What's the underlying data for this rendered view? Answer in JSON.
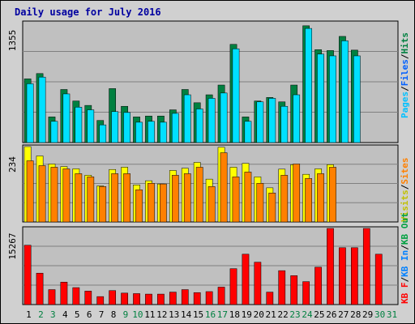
{
  "chart_data": {
    "type": "bar",
    "title": "Daily usage for July 2016",
    "categories": [
      "1",
      "2",
      "3",
      "4",
      "5",
      "6",
      "7",
      "8",
      "9",
      "10",
      "11",
      "12",
      "13",
      "14",
      "15",
      "16",
      "17",
      "18",
      "19",
      "20",
      "21",
      "22",
      "23",
      "24",
      "25",
      "26",
      "27",
      "28",
      "29",
      "30",
      "31"
    ],
    "weekend_days": [
      "2",
      "3",
      "9",
      "10",
      "16",
      "17",
      "23",
      "24",
      "30",
      "31"
    ],
    "panels": [
      {
        "name": "pages-files-hits",
        "max_label": "1355",
        "ymax": 1355,
        "legend": [
          "Pages",
          "Files",
          "Hits"
        ],
        "series": [
          {
            "name": "Hits",
            "color": "#008040",
            "values": [
              720,
              780,
              290,
              600,
              470,
              420,
              250,
              610,
              410,
              290,
              300,
              300,
              370,
              600,
              450,
              540,
              650,
              1110,
              290,
              470,
              510,
              460,
              650,
              1320,
              1050,
              1040,
              1200,
              1045
            ]
          },
          {
            "name": "Files",
            "color": "#00e0ff",
            "values": [
              665,
              740,
              240,
              550,
              400,
              370,
              200,
              350,
              340,
              230,
              240,
              230,
              330,
              540,
              380,
              500,
              560,
              1060,
              240,
              460,
              500,
              410,
              540,
              1290,
              1000,
              980,
              1150,
              980
            ]
          },
          {
            "name": "Pages",
            "color": "#0000ff",
            "values": [
              0,
              0,
              0,
              0,
              0,
              0,
              0,
              0,
              0,
              0,
              0,
              0,
              0,
              0,
              0,
              0,
              0,
              0,
              0,
              0,
              0,
              0,
              0,
              0,
              0,
              0,
              0,
              0
            ]
          }
        ]
      },
      {
        "name": "visits-sites",
        "max_label": "234",
        "ymax": 234,
        "legend": [
          "Visits",
          "Sites"
        ],
        "series": [
          {
            "name": "Visits",
            "color": "#ffff00",
            "values": [
              234,
              205,
              180,
              172,
              165,
              145,
              112,
              163,
              170,
              115,
              128,
              118,
              160,
              167,
              185,
              133,
              232,
              170,
              182,
              140,
              106,
              164,
              178,
              148,
              165,
              178
            ]
          },
          {
            "name": "Sites",
            "color": "#ff8000",
            "values": [
              190,
              175,
              170,
              165,
              150,
              140,
              110,
              150,
              150,
              100,
              120,
              118,
              145,
              150,
              170,
              110,
              215,
              140,
              155,
              120,
              90,
              145,
              180,
              135,
              150,
              170
            ]
          }
        ]
      },
      {
        "name": "kbin-kbout-kbf",
        "max_label": "15267",
        "ymax": 15267,
        "legend": [
          "KB F",
          "KB In",
          "KB Out"
        ],
        "series": [
          {
            "name": "KB F",
            "color": "#ff0000",
            "values": [
              11900,
              6300,
              3000,
              4500,
              3400,
              2700,
              1600,
              2800,
              2300,
              2200,
              2100,
              2100,
              2500,
              3000,
              2400,
              2600,
              3500,
              7200,
              10100,
              8500,
              2500,
              6800,
              5800,
              4600,
              7500,
              15267,
              11400,
              11400,
              15267,
              10100
            ]
          }
        ]
      }
    ],
    "legend_separator": "/"
  }
}
